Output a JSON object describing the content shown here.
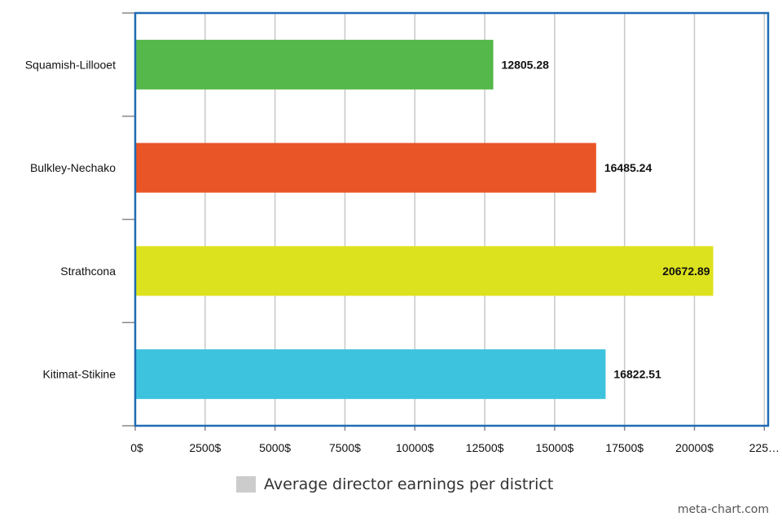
{
  "chart_data": {
    "type": "bar",
    "orientation": "horizontal",
    "categories": [
      "Squamish-Lillooet",
      "Bulkley-Nechako",
      "Strathcona",
      "Kitimat-Stikine"
    ],
    "series": [
      {
        "name": "Average director earnings per district",
        "values": [
          12805.28,
          16485.24,
          20672.89,
          16822.51
        ],
        "colors": [
          "#55b84a",
          "#e95526",
          "#dde21e",
          "#3dc3de"
        ]
      }
    ],
    "data_labels": [
      "12805.28",
      "16485.24",
      "20672.89",
      "16822.51"
    ],
    "x_ticks": [
      "0$",
      "2500$",
      "5000$",
      "7500$",
      "10000$",
      "12500$",
      "15000$",
      "17500$",
      "20000$",
      "225…"
    ],
    "x_tick_values": [
      0,
      2500,
      5000,
      7500,
      10000,
      12500,
      15000,
      17500,
      20000,
      22500
    ],
    "xlim": [
      0,
      22500
    ],
    "grid": true,
    "legend_position": "bottom",
    "frame_color": "#1f6bb5",
    "grid_color": "#c8c8c8"
  },
  "legend": {
    "label": "Average director earnings per district",
    "swatch_color": "#cccccc"
  },
  "credit": "meta-chart.com"
}
